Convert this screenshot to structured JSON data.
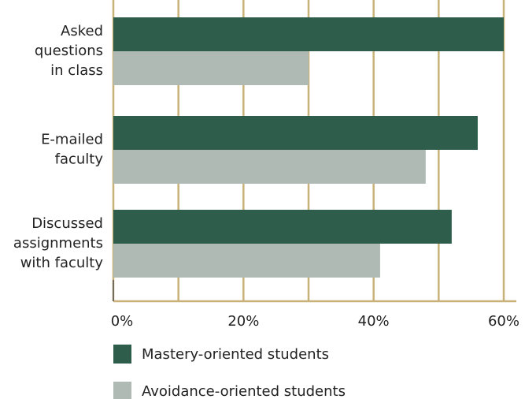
{
  "chart_data": {
    "type": "bar",
    "orientation": "horizontal",
    "categories": [
      "Asked\nquestions\nin class",
      "E-mailed\nfaculty",
      "Discussed\nassignments\nwith faculty"
    ],
    "series": [
      {
        "name": "Mastery-oriented students",
        "color": "#2e5e4b",
        "values": [
          60,
          56,
          52
        ]
      },
      {
        "name": "Avoidance-oriented students",
        "color": "#aebab3",
        "values": [
          30,
          48,
          41
        ]
      }
    ],
    "xlim": [
      0,
      60
    ],
    "xticks": [
      {
        "value": 0,
        "label": "0%"
      },
      {
        "value": 20,
        "label": "20%"
      },
      {
        "value": 40,
        "label": "40%"
      },
      {
        "value": 60,
        "label": "60%"
      }
    ],
    "minor_xticks": [
      10,
      30,
      50
    ],
    "grid": true,
    "grid_color": "#c8b27a"
  }
}
